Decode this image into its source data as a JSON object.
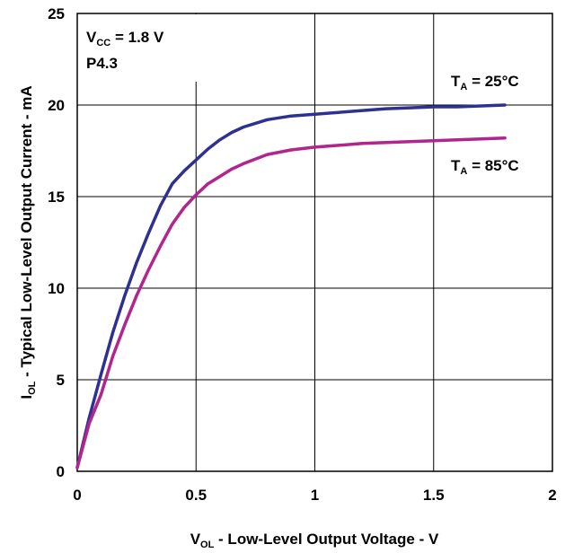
{
  "chart_data": {
    "type": "line",
    "title": "",
    "xlabel": {
      "main": "V",
      "sub": "OL",
      "rest": " - Low-Level Output Voltage - V"
    },
    "ylabel": {
      "main": "I",
      "sub": "OL",
      "rest": " - Typical Low-Level Output Current - mA"
    },
    "xlim": [
      0,
      2
    ],
    "ylim": [
      0,
      25
    ],
    "xticks": [
      0,
      0.5,
      1,
      1.5,
      2
    ],
    "xtick_labels": [
      "0",
      "0.5",
      "1",
      "1.5",
      "2"
    ],
    "yticks": [
      0,
      5,
      10,
      15,
      20,
      25
    ],
    "ytick_labels": [
      "0",
      "5",
      "10",
      "15",
      "20",
      "25"
    ],
    "grid": true,
    "annotations": {
      "vcc": {
        "main": "V",
        "sub": "CC",
        "rest": " = 1.8 V"
      },
      "pin": "P4.3"
    },
    "series": [
      {
        "name": {
          "main": "T",
          "sub": "A",
          "rest": " = 25°C"
        },
        "color": "#2E3192",
        "x": [
          0,
          0.05,
          0.1,
          0.15,
          0.2,
          0.25,
          0.3,
          0.35,
          0.4,
          0.45,
          0.5,
          0.55,
          0.6,
          0.65,
          0.7,
          0.8,
          0.9,
          1.0,
          1.1,
          1.2,
          1.3,
          1.4,
          1.5,
          1.6,
          1.7,
          1.8
        ],
        "y": [
          0.2,
          2.9,
          5.3,
          7.6,
          9.6,
          11.4,
          13.0,
          14.5,
          15.7,
          16.4,
          17.0,
          17.6,
          18.1,
          18.5,
          18.8,
          19.2,
          19.4,
          19.5,
          19.6,
          19.7,
          19.8,
          19.85,
          19.9,
          19.9,
          19.95,
          20.0
        ]
      },
      {
        "name": {
          "main": "T",
          "sub": "A",
          "rest": " = 85°C"
        },
        "color": "#B0268C",
        "x": [
          0,
          0.05,
          0.1,
          0.15,
          0.2,
          0.25,
          0.3,
          0.35,
          0.4,
          0.45,
          0.5,
          0.55,
          0.6,
          0.65,
          0.7,
          0.8,
          0.9,
          1.0,
          1.1,
          1.2,
          1.3,
          1.4,
          1.5,
          1.6,
          1.7,
          1.8
        ],
        "y": [
          0.2,
          2.6,
          4.2,
          6.3,
          8.0,
          9.6,
          11.0,
          12.3,
          13.5,
          14.4,
          15.1,
          15.7,
          16.1,
          16.5,
          16.8,
          17.3,
          17.55,
          17.7,
          17.8,
          17.9,
          17.95,
          18.0,
          18.05,
          18.1,
          18.15,
          18.2
        ]
      }
    ]
  }
}
